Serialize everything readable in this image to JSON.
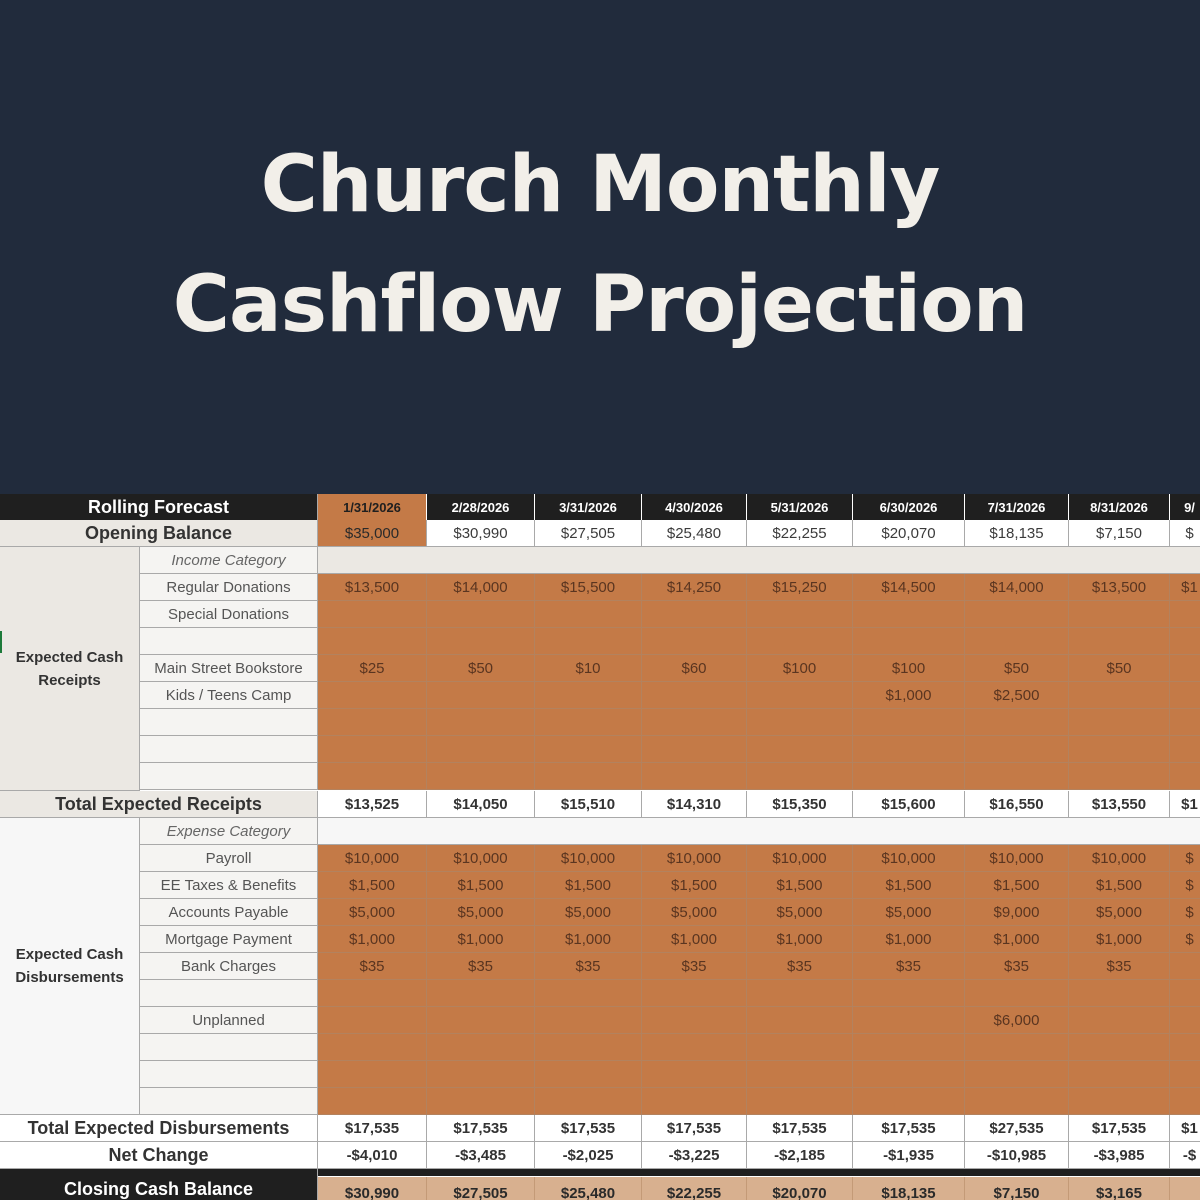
{
  "banner": {
    "title_line1": "Church Monthly",
    "title_line2": "Cashflow Projection",
    "bg_color": "#212b3c"
  },
  "sheet": {
    "header_label": "Rolling Forecast",
    "dates": [
      "1/31/2026",
      "2/28/2026",
      "3/31/2026",
      "4/30/2026",
      "5/31/2026",
      "6/30/2026",
      "7/31/2026",
      "8/31/2026",
      "9/"
    ],
    "opening_label": "Opening Balance",
    "opening": [
      "$35,000",
      "$30,990",
      "$27,505",
      "$25,480",
      "$22,255",
      "$20,070",
      "$18,135",
      "$7,150",
      "$"
    ],
    "receipts_section": "Expected Cash Receipts",
    "income_category": "Income Category",
    "receipts": [
      {
        "label": "Regular Donations",
        "values": [
          "$13,500",
          "$14,000",
          "$15,500",
          "$14,250",
          "$15,250",
          "$14,500",
          "$14,000",
          "$13,500",
          "$1"
        ]
      },
      {
        "label": "Special Donations",
        "values": [
          "",
          "",
          "",
          "",
          "",
          "",
          "",
          "",
          ""
        ]
      },
      {
        "label": "",
        "values": [
          "",
          "",
          "",
          "",
          "",
          "",
          "",
          "",
          ""
        ]
      },
      {
        "label": "Main Street Bookstore",
        "values": [
          "$25",
          "$50",
          "$10",
          "$60",
          "$100",
          "$100",
          "$50",
          "$50",
          ""
        ]
      },
      {
        "label": "Kids / Teens Camp",
        "values": [
          "",
          "",
          "",
          "",
          "",
          "$1,000",
          "$2,500",
          "",
          ""
        ]
      },
      {
        "label": "",
        "values": [
          "",
          "",
          "",
          "",
          "",
          "",
          "",
          "",
          ""
        ]
      },
      {
        "label": "",
        "values": [
          "",
          "",
          "",
          "",
          "",
          "",
          "",
          "",
          ""
        ]
      },
      {
        "label": "",
        "values": [
          "",
          "",
          "",
          "",
          "",
          "",
          "",
          "",
          ""
        ]
      }
    ],
    "total_receipts_label": "Total Expected Receipts",
    "total_receipts": [
      "$13,525",
      "$14,050",
      "$15,510",
      "$14,310",
      "$15,350",
      "$15,600",
      "$16,550",
      "$13,550",
      "$1"
    ],
    "disb_section": "Expected Cash Disbursements",
    "expense_category": "Expense Category",
    "disbursements": [
      {
        "label": "Payroll",
        "values": [
          "$10,000",
          "$10,000",
          "$10,000",
          "$10,000",
          "$10,000",
          "$10,000",
          "$10,000",
          "$10,000",
          "$"
        ]
      },
      {
        "label": "EE Taxes & Benefits",
        "values": [
          "$1,500",
          "$1,500",
          "$1,500",
          "$1,500",
          "$1,500",
          "$1,500",
          "$1,500",
          "$1,500",
          "$"
        ]
      },
      {
        "label": "Accounts Payable",
        "values": [
          "$5,000",
          "$5,000",
          "$5,000",
          "$5,000",
          "$5,000",
          "$5,000",
          "$9,000",
          "$5,000",
          "$"
        ]
      },
      {
        "label": "Mortgage Payment",
        "values": [
          "$1,000",
          "$1,000",
          "$1,000",
          "$1,000",
          "$1,000",
          "$1,000",
          "$1,000",
          "$1,000",
          "$"
        ]
      },
      {
        "label": "Bank Charges",
        "values": [
          "$35",
          "$35",
          "$35",
          "$35",
          "$35",
          "$35",
          "$35",
          "$35",
          ""
        ]
      },
      {
        "label": "",
        "values": [
          "",
          "",
          "",
          "",
          "",
          "",
          "",
          "",
          ""
        ]
      },
      {
        "label": "Unplanned",
        "values": [
          "",
          "",
          "",
          "",
          "",
          "",
          "$6,000",
          "",
          ""
        ]
      },
      {
        "label": "",
        "values": [
          "",
          "",
          "",
          "",
          "",
          "",
          "",
          "",
          ""
        ]
      },
      {
        "label": "",
        "values": [
          "",
          "",
          "",
          "",
          "",
          "",
          "",
          "",
          ""
        ]
      },
      {
        "label": "",
        "values": [
          "",
          "",
          "",
          "",
          "",
          "",
          "",
          "",
          ""
        ]
      }
    ],
    "total_disb_label": "Total Expected Disbursements",
    "total_disb": [
      "$17,535",
      "$17,535",
      "$17,535",
      "$17,535",
      "$17,535",
      "$17,535",
      "$27,535",
      "$17,535",
      "$1"
    ],
    "net_label": "Net Change",
    "net": [
      "-$4,010",
      "-$3,485",
      "-$2,025",
      "-$3,225",
      "-$2,185",
      "-$1,935",
      "-$10,985",
      "-$3,985",
      "-$"
    ],
    "closing_label": "Closing Cash Balance",
    "closing": [
      "$30,990",
      "$27,505",
      "$25,480",
      "$22,255",
      "$20,070",
      "$18,135",
      "$7,150",
      "$3,165",
      ""
    ],
    "accent_color": "#c47a47"
  }
}
